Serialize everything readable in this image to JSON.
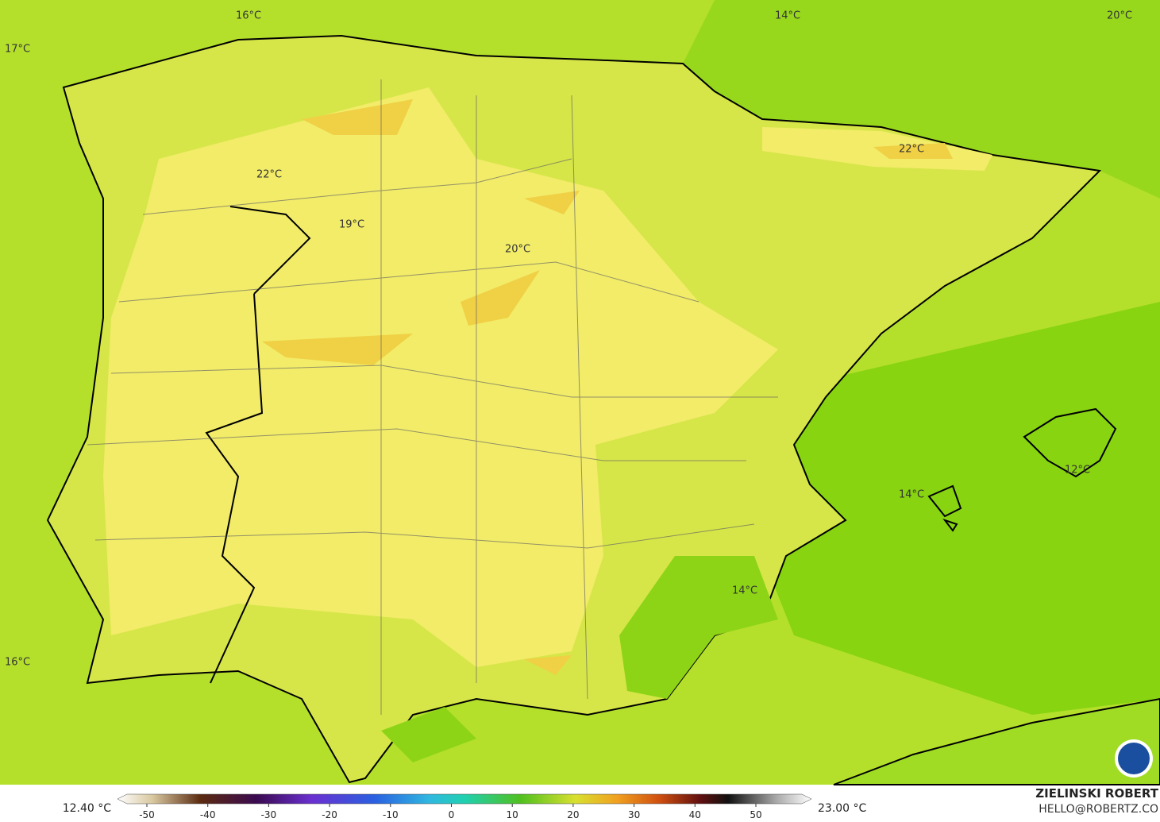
{
  "map": {
    "labels": [
      "16°C",
      "14°C",
      "20°C",
      "17°C",
      "22°C",
      "19°C",
      "20°C",
      "22°C",
      "14°C",
      "12°C",
      "14°C",
      "16°C"
    ],
    "colorbar": {
      "min_label": "12.40 °C",
      "max_label": "23.00 °C",
      "ticks": [
        -50,
        -40,
        -30,
        -20,
        -10,
        0,
        10,
        20,
        30,
        40,
        50
      ]
    },
    "credit": {
      "name": "ZIELINSKI ROBERT",
      "email": "HELLO@ROBERTZ.CO"
    }
  }
}
